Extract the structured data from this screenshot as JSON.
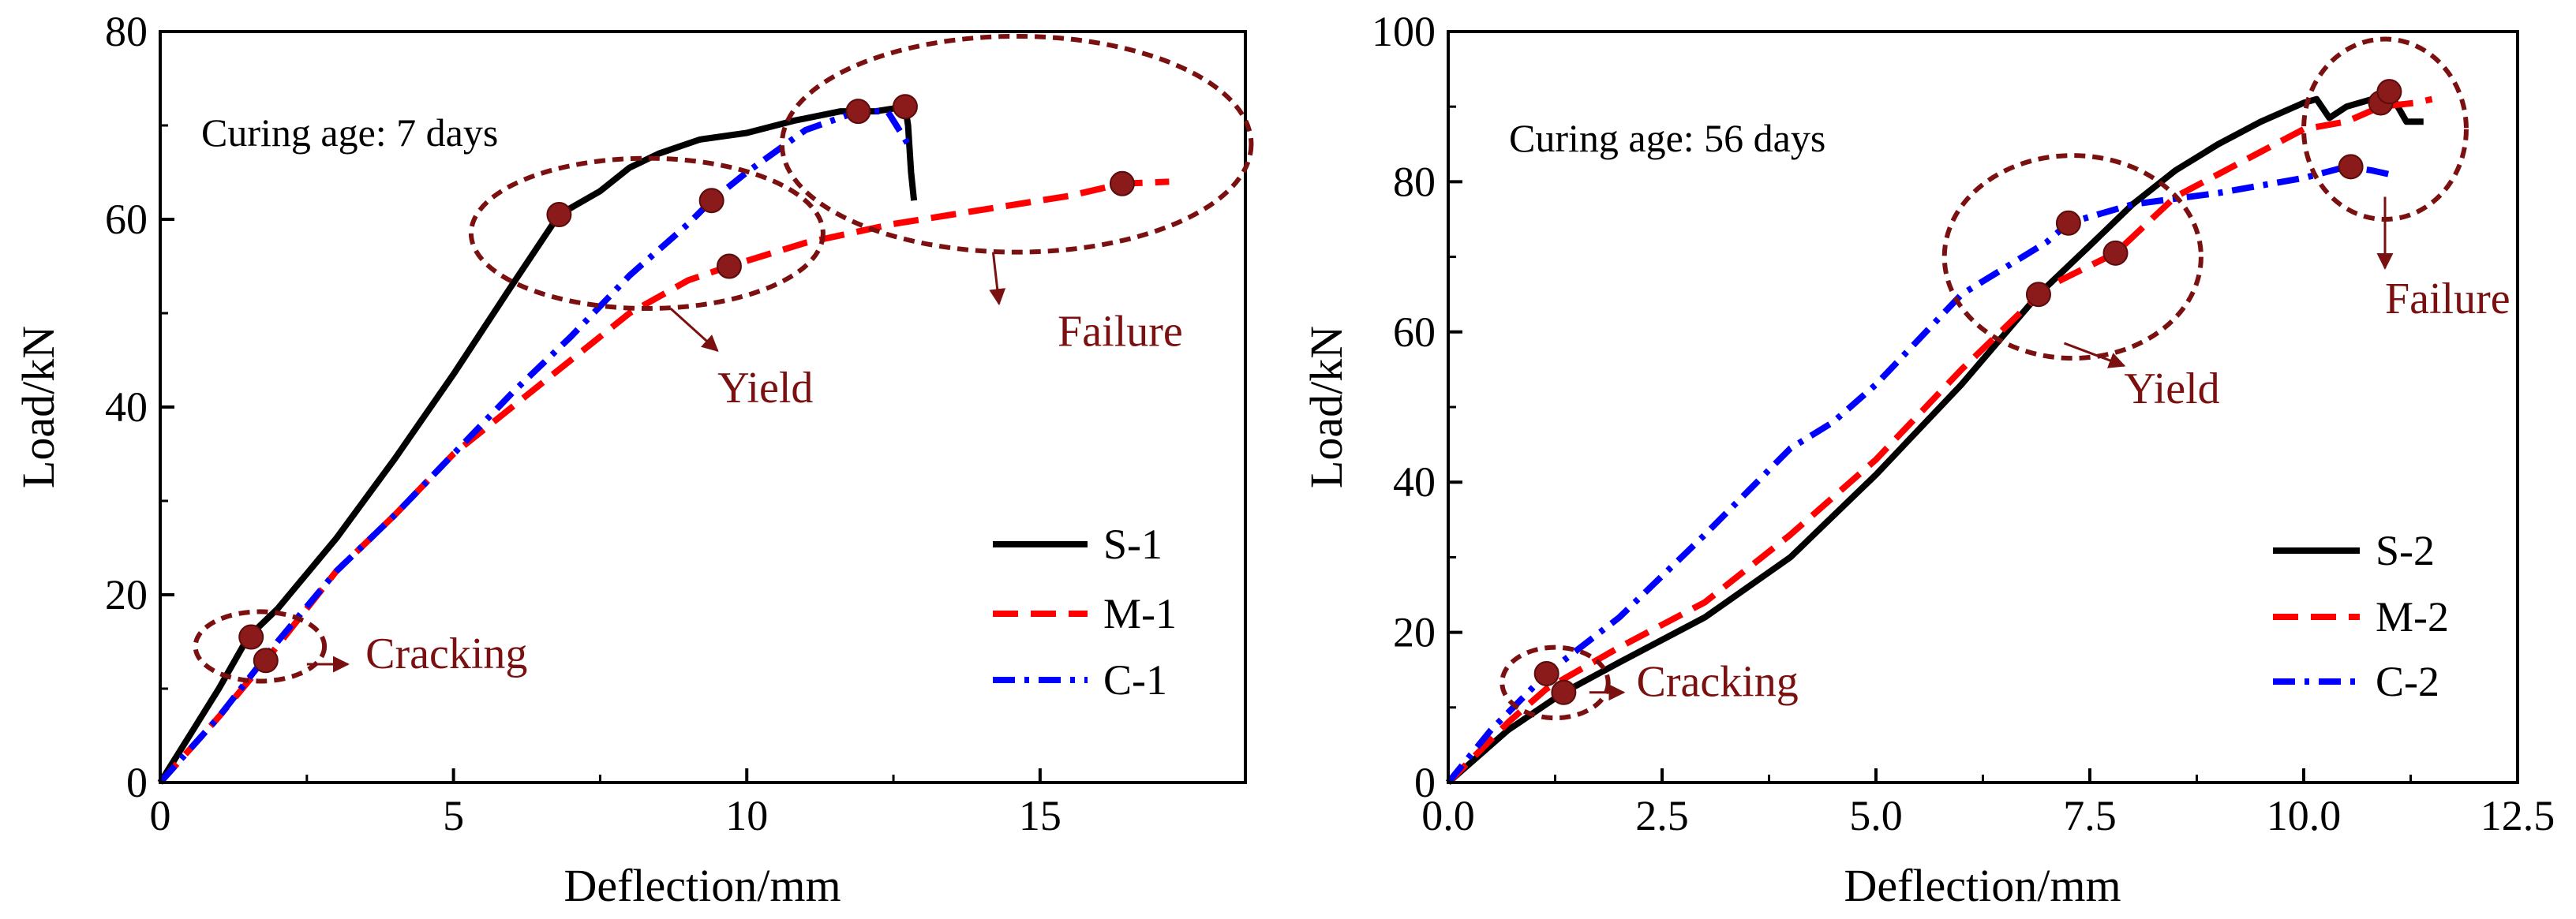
{
  "chart_data": [
    {
      "id": "left",
      "type": "line",
      "xlabel": "Deflection/mm",
      "ylabel": "Load/kN",
      "xlim": [
        0,
        18.5
      ],
      "ylim": [
        0,
        80
      ],
      "xticks": [
        0,
        5,
        10,
        15
      ],
      "xtick_labels": [
        "0",
        "5",
        "10",
        "15"
      ],
      "yticks": [
        0,
        20,
        40,
        60,
        80
      ],
      "ytick_labels": [
        "0",
        "20",
        "40",
        "60",
        "80"
      ],
      "note": "Curing age: 7 days",
      "legend_position": "bottom-right",
      "series": [
        {
          "name": "S-1",
          "color": "#000000",
          "style": "solid",
          "x": [
            0,
            0.5,
            1.0,
            1.5,
            2.0,
            3.0,
            4.0,
            5.0,
            6.0,
            6.8,
            7.5,
            8.0,
            8.5,
            9.2,
            10.0,
            10.8,
            11.6,
            12.2,
            12.7,
            12.75,
            12.8,
            12.85
          ],
          "y": [
            0,
            5,
            10,
            15.5,
            18.5,
            26,
            34.5,
            43.5,
            53,
            60.5,
            63,
            65.5,
            67,
            68.5,
            69.2,
            70.5,
            71.5,
            71.5,
            72,
            70,
            65,
            62
          ]
        },
        {
          "name": "M-1",
          "color": "#ff0000",
          "style": "dash",
          "x": [
            0,
            1.0,
            1.8,
            3.0,
            4.0,
            5.0,
            6.0,
            7.0,
            8.0,
            9.0,
            9.7,
            11.0,
            12.5,
            14.0,
            15.5,
            16.4,
            17.2
          ],
          "y": [
            0,
            7,
            13,
            22.5,
            28.5,
            35,
            40,
            45,
            50,
            53.5,
            55,
            57.5,
            59.5,
            61,
            62.5,
            63.8,
            64
          ]
        },
        {
          "name": "C-1",
          "color": "#0000ff",
          "style": "dashdot",
          "x": [
            0,
            1.0,
            2.0,
            3.0,
            4.0,
            5.0,
            6.0,
            7.0,
            8.0,
            9.0,
            9.4,
            10.0,
            11.0,
            11.9,
            12.4,
            12.8
          ],
          "y": [
            0,
            7,
            15,
            22.5,
            28.5,
            35,
            41.5,
            47.5,
            54,
            59.5,
            62,
            65,
            69.5,
            71.5,
            71.5,
            67.5
          ]
        }
      ],
      "markers": [
        {
          "x": 1.55,
          "y": 15.5
        },
        {
          "x": 1.8,
          "y": 13
        },
        {
          "x": 6.8,
          "y": 60.5
        },
        {
          "x": 9.4,
          "y": 62
        },
        {
          "x": 9.7,
          "y": 55
        },
        {
          "x": 11.9,
          "y": 71.5
        },
        {
          "x": 12.7,
          "y": 72
        },
        {
          "x": 16.4,
          "y": 63.8
        }
      ],
      "regions": [
        {
          "cx": 1.7,
          "cy": 14.5,
          "rx": 1.1,
          "ry": 3.7,
          "label": "Cracking",
          "label_x": 3.5,
          "label_y": 12.2,
          "arrow_from": [
            2.5,
            12.6
          ],
          "arrow_to": [
            3.2,
            12.6
          ]
        },
        {
          "cx": 8.3,
          "cy": 58.5,
          "rx": 3.0,
          "ry": 8.0,
          "label": "Yield",
          "label_x": 9.5,
          "label_y": 40.5,
          "arrow_from": [
            8.7,
            50.5
          ],
          "arrow_to": [
            9.5,
            46
          ]
        },
        {
          "cx": 14.6,
          "cy": 68,
          "rx": 4.0,
          "ry": 11.5,
          "label": "Failure",
          "label_x": 15.3,
          "label_y": 46.5,
          "arrow_from": [
            14.2,
            56.5
          ],
          "arrow_to": [
            14.3,
            51
          ]
        }
      ]
    },
    {
      "id": "right",
      "type": "line",
      "xlabel": "Deflection/mm",
      "ylabel": "Load/kN",
      "xlim": [
        0,
        12.5
      ],
      "ylim": [
        0,
        100
      ],
      "xticks": [
        0,
        2.5,
        5,
        7.5,
        10,
        12.5
      ],
      "xtick_labels": [
        "0.0",
        "2.5",
        "5.0",
        "7.5",
        "10.0",
        "12.5"
      ],
      "yticks": [
        0,
        20,
        40,
        60,
        80,
        100
      ],
      "ytick_labels": [
        "0",
        "20",
        "40",
        "60",
        "80",
        "100"
      ],
      "note": "Curing age: 56 days",
      "legend_position": "bottom-right",
      "series": [
        {
          "name": "S-2",
          "color": "#000000",
          "style": "solid",
          "x": [
            0,
            0.7,
            1.35,
            2.0,
            3.0,
            4.0,
            5.0,
            6.0,
            6.9,
            7.5,
            8.0,
            8.5,
            9.0,
            9.5,
            10.0,
            10.15,
            10.3,
            10.5,
            10.8,
            11.0,
            11.1,
            11.2,
            11.4
          ],
          "y": [
            0,
            7,
            12,
            16,
            22,
            30,
            41,
            53,
            65,
            71.5,
            77,
            81.5,
            85,
            88,
            90.5,
            91,
            88.5,
            90,
            91,
            92,
            90,
            88,
            88
          ]
        },
        {
          "name": "M-2",
          "color": "#ff0000",
          "style": "dash",
          "x": [
            0,
            0.7,
            1.15,
            2.0,
            3.0,
            4.0,
            5.0,
            6.0,
            7.0,
            7.8,
            8.5,
            9.0,
            9.5,
            10.0,
            10.5,
            10.9,
            11.3,
            11.5
          ],
          "y": [
            0,
            8,
            12.5,
            18,
            24,
            33,
            43,
            55,
            66,
            70.5,
            78,
            81,
            84,
            87,
            88,
            90,
            90.5,
            91
          ]
        },
        {
          "name": "C-2",
          "color": "#0000ff",
          "style": "dashdot",
          "x": [
            0,
            0.5,
            1.15,
            2.0,
            3.0,
            4.0,
            4.5,
            5.0,
            6.0,
            7.0,
            7.25,
            8.0,
            9.0,
            10.0,
            10.5,
            10.8,
            11.0
          ],
          "y": [
            0,
            7,
            14.5,
            22,
            33,
            44.5,
            48,
            53,
            65,
            72,
            74.5,
            77,
            78.5,
            80.5,
            82,
            81.5,
            81
          ]
        }
      ],
      "markers": [
        {
          "x": 1.15,
          "y": 14.5
        },
        {
          "x": 1.35,
          "y": 12
        },
        {
          "x": 6.9,
          "y": 65
        },
        {
          "x": 7.25,
          "y": 74.5
        },
        {
          "x": 7.8,
          "y": 70.5
        },
        {
          "x": 10.55,
          "y": 82
        },
        {
          "x": 10.9,
          "y": 90.5
        },
        {
          "x": 11.0,
          "y": 92
        }
      ],
      "regions": [
        {
          "cx": 1.25,
          "cy": 13.3,
          "rx": 0.62,
          "ry": 4.7,
          "label": "Cracking",
          "label_x": 2.2,
          "label_y": 11.5,
          "arrow_from": [
            1.65,
            12.0
          ],
          "arrow_to": [
            2.05,
            12.0
          ]
        },
        {
          "cx": 7.3,
          "cy": 70,
          "rx": 1.5,
          "ry": 13.5,
          "label": "Yield",
          "label_x": 7.9,
          "label_y": 50.5,
          "arrow_from": [
            7.2,
            58.5
          ],
          "arrow_to": [
            7.9,
            55.5
          ]
        },
        {
          "cx": 10.95,
          "cy": 87,
          "rx": 0.95,
          "ry": 12,
          "label": "Failure",
          "label_x": 10.95,
          "label_y": 62.5,
          "arrow_from": [
            10.95,
            78
          ],
          "arrow_to": [
            10.95,
            68.5
          ]
        }
      ]
    }
  ]
}
